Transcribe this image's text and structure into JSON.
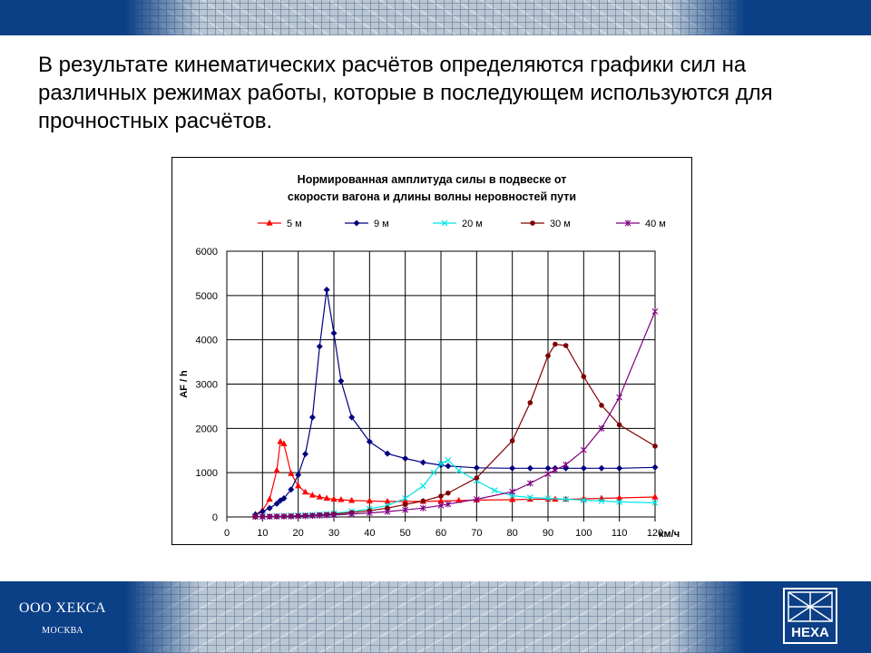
{
  "slide": {
    "heading": "В результате кинематических расчётов определяются графики сил на различных режимах работы, которые в последующем используются для прочностных расчётов.",
    "company": "ООО ХЕКСА",
    "city": "МОСКВА",
    "logo_text": "HEXA",
    "band_color": "#0b3f86"
  },
  "chart_data": {
    "type": "line",
    "title_lines": [
      "Нормированная амплитуда силы  в подвеске от",
      "скорости вагона и длины волны неровностей пути"
    ],
    "ylabel": "AF / h",
    "xlabel": "км/ч",
    "xlim": [
      0,
      120
    ],
    "ylim": [
      0,
      6000
    ],
    "xticks": [
      0,
      10,
      20,
      30,
      40,
      50,
      60,
      70,
      80,
      90,
      100,
      110,
      120
    ],
    "yticks": [
      0,
      1000,
      2000,
      3000,
      4000,
      5000,
      6000
    ],
    "grid": true,
    "legend_position": "top",
    "series": [
      {
        "name": "5 м",
        "color": "#ff0000",
        "marker": "triangle",
        "points": [
          [
            8,
            60
          ],
          [
            10,
            150
          ],
          [
            12,
            400
          ],
          [
            14,
            1050
          ],
          [
            15,
            1700
          ],
          [
            16,
            1650
          ],
          [
            18,
            980
          ],
          [
            20,
            700
          ],
          [
            22,
            560
          ],
          [
            24,
            490
          ],
          [
            26,
            450
          ],
          [
            28,
            420
          ],
          [
            30,
            400
          ],
          [
            32,
            390
          ],
          [
            35,
            370
          ],
          [
            40,
            360
          ],
          [
            45,
            350
          ],
          [
            50,
            350
          ],
          [
            55,
            350
          ],
          [
            60,
            360
          ],
          [
            65,
            370
          ],
          [
            70,
            380
          ],
          [
            80,
            390
          ],
          [
            85,
            400
          ],
          [
            90,
            400
          ],
          [
            92,
            400
          ],
          [
            95,
            400
          ],
          [
            100,
            410
          ],
          [
            105,
            420
          ],
          [
            110,
            430
          ],
          [
            120,
            450
          ]
        ]
      },
      {
        "name": "9 м",
        "color": "#000080",
        "marker": "diamond",
        "points": [
          [
            8,
            50
          ],
          [
            10,
            120
          ],
          [
            12,
            200
          ],
          [
            14,
            300
          ],
          [
            15,
            370
          ],
          [
            16,
            420
          ],
          [
            18,
            620
          ],
          [
            20,
            950
          ],
          [
            22,
            1420
          ],
          [
            24,
            2250
          ],
          [
            26,
            3850
          ],
          [
            28,
            5130
          ],
          [
            30,
            4150
          ],
          [
            32,
            3070
          ],
          [
            35,
            2250
          ],
          [
            40,
            1700
          ],
          [
            45,
            1430
          ],
          [
            50,
            1320
          ],
          [
            55,
            1230
          ],
          [
            60,
            1170
          ],
          [
            62,
            1150
          ],
          [
            70,
            1110
          ],
          [
            80,
            1100
          ],
          [
            85,
            1100
          ],
          [
            90,
            1100
          ],
          [
            92,
            1100
          ],
          [
            95,
            1100
          ],
          [
            100,
            1100
          ],
          [
            105,
            1100
          ],
          [
            110,
            1100
          ],
          [
            120,
            1120
          ]
        ]
      },
      {
        "name": "20 м",
        "color": "#00e5e5",
        "marker": "x",
        "points": [
          [
            8,
            10
          ],
          [
            10,
            12
          ],
          [
            12,
            15
          ],
          [
            14,
            18
          ],
          [
            16,
            22
          ],
          [
            18,
            28
          ],
          [
            20,
            35
          ],
          [
            22,
            42
          ],
          [
            24,
            50
          ],
          [
            26,
            60
          ],
          [
            28,
            70
          ],
          [
            30,
            85
          ],
          [
            35,
            130
          ],
          [
            40,
            180
          ],
          [
            45,
            260
          ],
          [
            50,
            420
          ],
          [
            55,
            700
          ],
          [
            58,
            1000
          ],
          [
            60,
            1200
          ],
          [
            62,
            1280
          ],
          [
            65,
            1050
          ],
          [
            70,
            820
          ],
          [
            75,
            600
          ],
          [
            80,
            480
          ],
          [
            85,
            440
          ],
          [
            90,
            420
          ],
          [
            95,
            400
          ],
          [
            100,
            380
          ],
          [
            105,
            360
          ],
          [
            110,
            340
          ],
          [
            120,
            320
          ]
        ]
      },
      {
        "name": "30 м",
        "color": "#800000",
        "marker": "circle",
        "points": [
          [
            8,
            5
          ],
          [
            10,
            8
          ],
          [
            12,
            10
          ],
          [
            14,
            12
          ],
          [
            16,
            15
          ],
          [
            18,
            20
          ],
          [
            20,
            25
          ],
          [
            22,
            30
          ],
          [
            24,
            35
          ],
          [
            26,
            45
          ],
          [
            28,
            55
          ],
          [
            30,
            65
          ],
          [
            35,
            100
          ],
          [
            40,
            140
          ],
          [
            45,
            200
          ],
          [
            50,
            280
          ],
          [
            55,
            360
          ],
          [
            60,
            470
          ],
          [
            62,
            540
          ],
          [
            70,
            880
          ],
          [
            80,
            1720
          ],
          [
            85,
            2580
          ],
          [
            90,
            3640
          ],
          [
            92,
            3900
          ],
          [
            95,
            3870
          ],
          [
            100,
            3170
          ],
          [
            105,
            2520
          ],
          [
            110,
            2080
          ],
          [
            120,
            1600
          ]
        ]
      },
      {
        "name": "40 м",
        "color": "#800080",
        "marker": "star",
        "points": [
          [
            8,
            5
          ],
          [
            10,
            6
          ],
          [
            12,
            8
          ],
          [
            14,
            10
          ],
          [
            16,
            12
          ],
          [
            18,
            14
          ],
          [
            20,
            18
          ],
          [
            22,
            22
          ],
          [
            24,
            26
          ],
          [
            26,
            32
          ],
          [
            28,
            38
          ],
          [
            30,
            45
          ],
          [
            35,
            65
          ],
          [
            40,
            90
          ],
          [
            45,
            120
          ],
          [
            50,
            160
          ],
          [
            55,
            200
          ],
          [
            60,
            260
          ],
          [
            62,
            290
          ],
          [
            70,
            400
          ],
          [
            80,
            570
          ],
          [
            85,
            760
          ],
          [
            90,
            970
          ],
          [
            92,
            1060
          ],
          [
            95,
            1180
          ],
          [
            100,
            1510
          ],
          [
            105,
            2000
          ],
          [
            110,
            2700
          ],
          [
            120,
            4640
          ]
        ]
      }
    ]
  }
}
